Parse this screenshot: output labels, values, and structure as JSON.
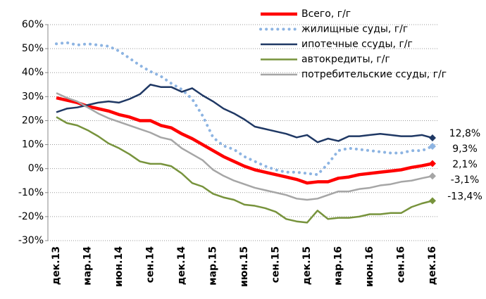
{
  "chart_data": {
    "type": "line",
    "categories": [
      "дек.13",
      null,
      null,
      "мар.14",
      null,
      null,
      "июн.14",
      null,
      null,
      "сен.14",
      null,
      null,
      "дек.14",
      null,
      null,
      "мар.15",
      null,
      null,
      "июн.15",
      null,
      null,
      "сен.15",
      null,
      null,
      "дек.15",
      null,
      null,
      "мар.16",
      null,
      null,
      "июн.16",
      null,
      null,
      "сен.16",
      null,
      null,
      "дек.16"
    ],
    "ylim": [
      -30,
      60
    ],
    "yticks": [
      {
        "value": -30,
        "label": "-30%"
      },
      {
        "value": -20,
        "label": "-20%"
      },
      {
        "value": -10,
        "label": "-10%"
      },
      {
        "value": 0,
        "label": "0%"
      },
      {
        "value": 10,
        "label": "10%"
      },
      {
        "value": 20,
        "label": "20%"
      },
      {
        "value": 30,
        "label": "30%"
      },
      {
        "value": 40,
        "label": "40%"
      },
      {
        "value": 50,
        "label": "50%"
      },
      {
        "value": 60,
        "label": "60%"
      }
    ],
    "grid": true,
    "legend": "top-right",
    "series": [
      {
        "name": "Всего, г/г",
        "color": "#ff0000",
        "width": 4.5,
        "dash": "solid",
        "values": [
          29.5,
          28.5,
          27.5,
          26,
          25,
          24,
          22.5,
          21.5,
          20,
          20,
          18,
          17,
          14.5,
          12.5,
          10,
          7.5,
          5,
          3,
          1,
          -0.5,
          -1.5,
          -2.5,
          -3.5,
          -4.5,
          -6,
          -5.5,
          -5.5,
          -4,
          -3.5,
          -2.5,
          -2,
          -1.5,
          -1,
          -0.5,
          0.5,
          1.2,
          2.1
        ],
        "value_labels": [
          null,
          null,
          null,
          null,
          null,
          null,
          null,
          null,
          null,
          null,
          null,
          null,
          null,
          null,
          null,
          null,
          null,
          null,
          null,
          null,
          null,
          null,
          null,
          null,
          null,
          null,
          null,
          null,
          null,
          null,
          null,
          null,
          null,
          null,
          null,
          null,
          "2,1%"
        ]
      },
      {
        "name": "жилищные суды, г/г",
        "color": "#8db4e2",
        "width": 4,
        "dash": "dotted",
        "values": [
          52,
          52.5,
          51.5,
          52,
          51.5,
          51,
          49,
          46,
          43,
          40.5,
          38.5,
          35.5,
          33,
          29,
          22,
          13,
          9.5,
          8,
          5,
          3,
          1,
          -0.5,
          -1.5,
          -1.5,
          -2,
          -2.5,
          2,
          7.5,
          8.5,
          8,
          7.5,
          7,
          6.5,
          6.5,
          7.5,
          7.5,
          9.3
        ],
        "value_labels": [
          null,
          null,
          null,
          null,
          null,
          null,
          null,
          null,
          null,
          null,
          null,
          null,
          null,
          null,
          null,
          null,
          null,
          null,
          null,
          null,
          null,
          null,
          null,
          null,
          null,
          null,
          null,
          null,
          null,
          null,
          null,
          null,
          null,
          null,
          null,
          null,
          "9,3%"
        ]
      },
      {
        "name": "ипотечные ссуды, г/г",
        "color": "#1f3864",
        "width": 2.5,
        "dash": "solid",
        "values": [
          23.5,
          25,
          25.5,
          26.5,
          27.5,
          28,
          27.5,
          29,
          31,
          35,
          34,
          34,
          32,
          33.5,
          30.5,
          28,
          25,
          23,
          20.5,
          17.5,
          16.5,
          15.5,
          14.5,
          13,
          14,
          11,
          12.5,
          11.5,
          13.5,
          13.5,
          14,
          14.5,
          14,
          13.5,
          13.5,
          14,
          12.8
        ],
        "value_labels": [
          null,
          null,
          null,
          null,
          null,
          null,
          null,
          null,
          null,
          null,
          null,
          null,
          null,
          null,
          null,
          null,
          null,
          null,
          null,
          null,
          null,
          null,
          null,
          null,
          null,
          null,
          null,
          null,
          null,
          null,
          null,
          null,
          null,
          null,
          null,
          null,
          "12,8%"
        ]
      },
      {
        "name": "автокредиты, г/г",
        "color": "#77933c",
        "width": 2.5,
        "dash": "solid",
        "values": [
          21.5,
          19,
          18,
          16,
          13.5,
          10.5,
          8.5,
          6,
          3,
          2,
          2,
          1,
          -2,
          -6,
          -7.5,
          -10.5,
          -12,
          -13,
          -15,
          -15.5,
          -16.5,
          -18,
          -21,
          -22,
          -22.5,
          -17.5,
          -21,
          -20.5,
          -20.5,
          -20,
          -19,
          -19,
          -18.5,
          -18.5,
          -16,
          -14.5,
          -13.4
        ],
        "value_labels": [
          null,
          null,
          null,
          null,
          null,
          null,
          null,
          null,
          null,
          null,
          null,
          null,
          null,
          null,
          null,
          null,
          null,
          null,
          null,
          null,
          null,
          null,
          null,
          null,
          null,
          null,
          null,
          null,
          null,
          null,
          null,
          null,
          null,
          null,
          null,
          null,
          "-13,4%"
        ]
      },
      {
        "name": "потребительские ссуды, г/г",
        "color": "#a6a6a6",
        "width": 2.5,
        "dash": "solid",
        "values": [
          31.5,
          29.5,
          28,
          25.5,
          23,
          21,
          19.5,
          18,
          16.5,
          15,
          13,
          12,
          8.5,
          6,
          3.5,
          -0.5,
          -3,
          -5,
          -6.5,
          -8,
          -9,
          -10,
          -11,
          -12.5,
          -13,
          -12.5,
          -11,
          -9.5,
          -9.5,
          -8.5,
          -8,
          -7,
          -6.5,
          -5.5,
          -5,
          -4,
          -3.1
        ],
        "value_labels": [
          null,
          null,
          null,
          null,
          null,
          null,
          null,
          null,
          null,
          null,
          null,
          null,
          null,
          null,
          null,
          null,
          null,
          null,
          null,
          null,
          null,
          null,
          null,
          null,
          null,
          null,
          null,
          null,
          null,
          null,
          null,
          null,
          null,
          null,
          null,
          null,
          "-3,1%"
        ]
      }
    ]
  }
}
